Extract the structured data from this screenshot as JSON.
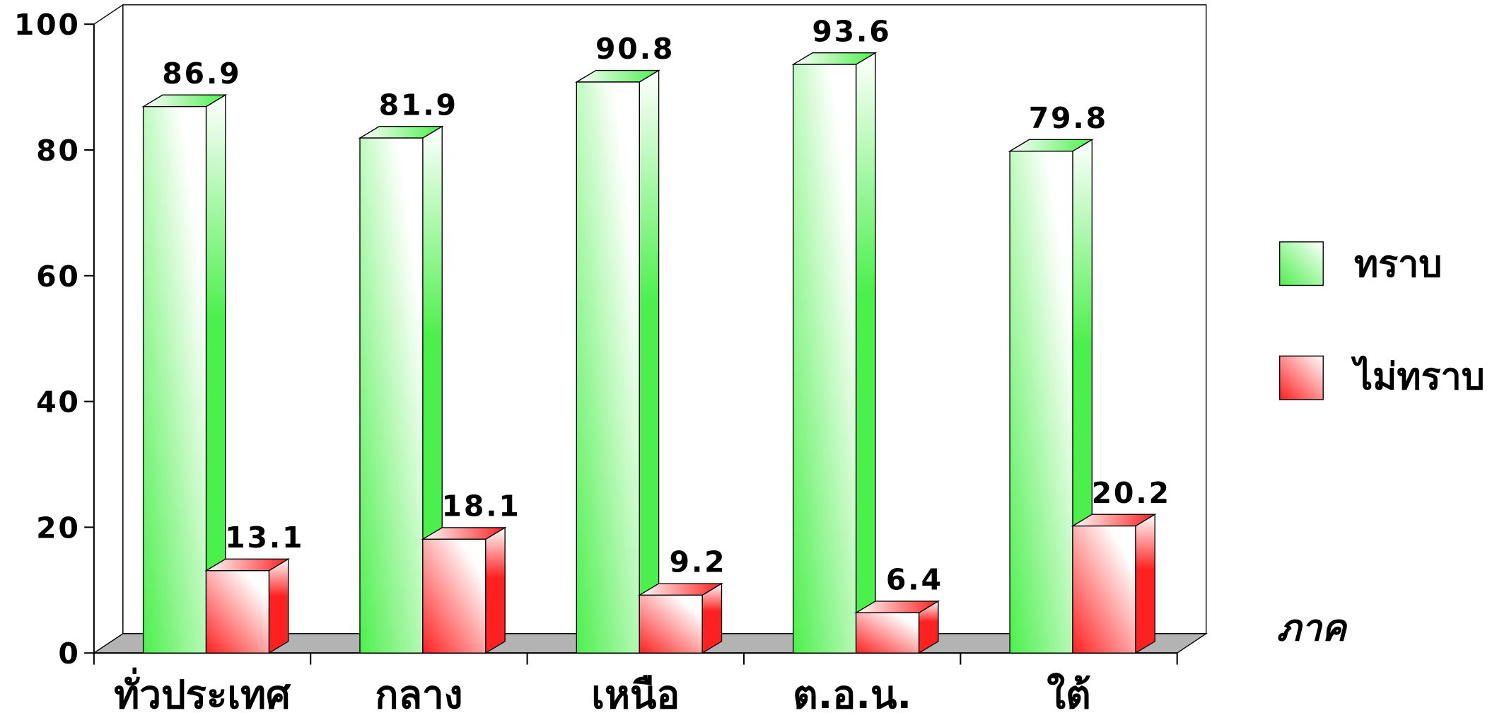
{
  "chart_data": {
    "type": "bar",
    "style": "3d",
    "title": "",
    "xlabel": "ภาค",
    "ylabel": "",
    "categories": [
      "ทั่วประเทศ",
      "กลาง",
      "เหนือ",
      "ต.อ.น.",
      "ใต้"
    ],
    "series": [
      {
        "name": "ทราบ",
        "values": [
          86.9,
          81.9,
          90.8,
          93.6,
          79.8
        ],
        "color": "#4cf04c"
      },
      {
        "name": "ไม่ทราบ",
        "values": [
          13.1,
          18.1,
          9.2,
          6.4,
          20.2
        ],
        "color": "#ff2020"
      }
    ],
    "ylim": [
      0,
      100
    ],
    "yticks": [
      0,
      20,
      40,
      60,
      80,
      100
    ],
    "grid": false,
    "legend_position": "right",
    "floor_color": "#b3b3b3"
  }
}
